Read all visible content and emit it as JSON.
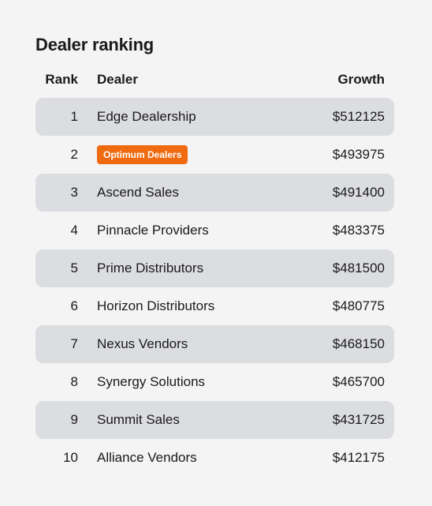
{
  "title": "Dealer ranking",
  "columns": {
    "rank": "Rank",
    "dealer": "Dealer",
    "growth": "Growth"
  },
  "highlight_color": "#f06a0f",
  "rows": [
    {
      "rank": "1",
      "dealer": "Edge Dealership",
      "growth": "$512125",
      "highlighted": false
    },
    {
      "rank": "2",
      "dealer": "Optimum Dealers",
      "growth": "$493975",
      "highlighted": true
    },
    {
      "rank": "3",
      "dealer": "Ascend Sales",
      "growth": "$491400",
      "highlighted": false
    },
    {
      "rank": "4",
      "dealer": "Pinnacle Providers",
      "growth": "$483375",
      "highlighted": false
    },
    {
      "rank": "5",
      "dealer": "Prime Distributors",
      "growth": "$481500",
      "highlighted": false
    },
    {
      "rank": "6",
      "dealer": "Horizon Distributors",
      "growth": "$480775",
      "highlighted": false
    },
    {
      "rank": "7",
      "dealer": "Nexus Vendors",
      "growth": "$468150",
      "highlighted": false
    },
    {
      "rank": "8",
      "dealer": "Synergy Solutions",
      "growth": "$465700",
      "highlighted": false
    },
    {
      "rank": "9",
      "dealer": "Summit Sales",
      "growth": "$431725",
      "highlighted": false
    },
    {
      "rank": "10",
      "dealer": "Alliance Vendors",
      "growth": "$412175",
      "highlighted": false
    }
  ]
}
